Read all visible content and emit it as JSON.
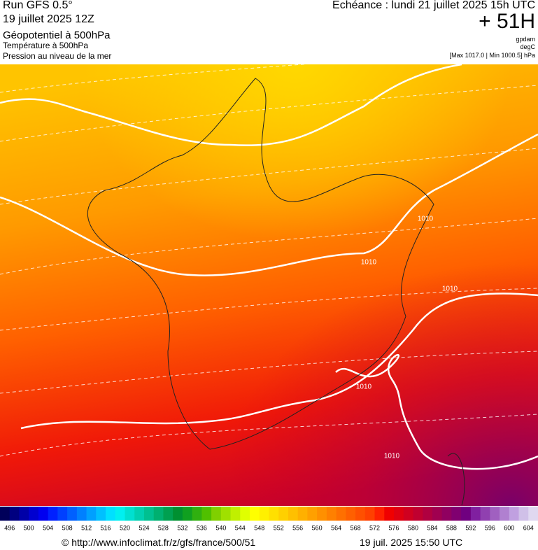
{
  "header": {
    "run": "Run GFS 0.5°",
    "date": "19 juillet 2025 12Z",
    "field1": "Géopotentiel à 500hPa",
    "field2": "Température à 500hPa",
    "field3": "Pression au niveau de la mer",
    "forecast": "Echéance : lundi 21 juillet 2025 15h UTC",
    "lead": "+ 51H",
    "unit1": "gpdam",
    "unit2": "degC",
    "pressure_range": "[Max 1017.0 | Min 1000.5] hPa"
  },
  "map": {
    "contour_labels": [
      "1010",
      "1010",
      "1010",
      "1010",
      "1010"
    ]
  },
  "colorbar": {
    "ticks": [
      496,
      500,
      504,
      508,
      512,
      516,
      520,
      524,
      528,
      532,
      536,
      540,
      544,
      548,
      552,
      556,
      560,
      564,
      568,
      572,
      576,
      580,
      584,
      588,
      592,
      596,
      600,
      604
    ],
    "colors": [
      "#00005a",
      "#000080",
      "#0000a8",
      "#0000d0",
      "#0000f0",
      "#0020ff",
      "#0040ff",
      "#0060ff",
      "#0080ff",
      "#00a0ff",
      "#00c0ff",
      "#00e0ff",
      "#00f0f0",
      "#00e0d0",
      "#00d0b0",
      "#00c090",
      "#00b070",
      "#00a050",
      "#009030",
      "#10a020",
      "#30b010",
      "#50c000",
      "#80d000",
      "#a0e000",
      "#c0f000",
      "#e0ff00",
      "#ffff00",
      "#fff000",
      "#ffe000",
      "#ffd000",
      "#ffc000",
      "#ffb000",
      "#ffa000",
      "#ff9000",
      "#ff8000",
      "#ff7000",
      "#ff6000",
      "#ff5000",
      "#ff4000",
      "#ff2000",
      "#f00000",
      "#e00010",
      "#d00020",
      "#c00030",
      "#b00040",
      "#a00050",
      "#900060",
      "#800070",
      "#700080",
      "#8020a0",
      "#9040b0",
      "#a060c0",
      "#b080d0",
      "#c0a0e0",
      "#d0c0e8",
      "#e0d8f0"
    ]
  },
  "footer": {
    "url": "© http://www.infoclimat.fr/z/gfs/france/500/51",
    "timestamp": "19 juil. 2025 15:50 UTC"
  }
}
